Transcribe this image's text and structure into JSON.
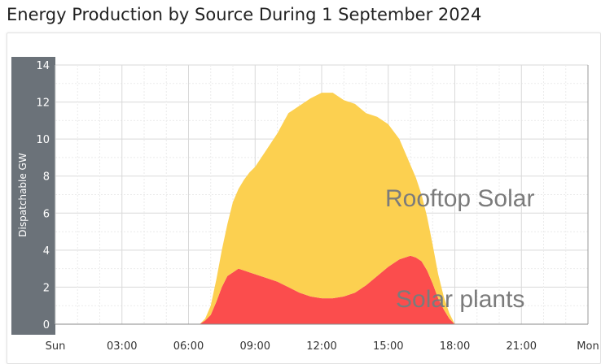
{
  "title": "Energy Production by Source During 1 September 2024",
  "chart_data": {
    "type": "area",
    "stacked": true,
    "ylabel": "Dispatchable GW",
    "ylim": [
      0,
      14
    ],
    "yticks": [
      0,
      2,
      4,
      6,
      8,
      10,
      12,
      14
    ],
    "xlim": [
      0,
      24
    ],
    "xticks": [
      {
        "x": 0,
        "label": "Sun"
      },
      {
        "x": 3,
        "label": "03:00"
      },
      {
        "x": 6,
        "label": "06:00"
      },
      {
        "x": 9,
        "label": "09:00"
      },
      {
        "x": 12,
        "label": "12:00"
      },
      {
        "x": 15,
        "label": "15:00"
      },
      {
        "x": 18,
        "label": "18:00"
      },
      {
        "x": 21,
        "label": "21:00"
      },
      {
        "x": 24,
        "label": "Mon"
      }
    ],
    "grid": true,
    "x_hours": [
      6.5,
      6.75,
      7.0,
      7.25,
      7.5,
      7.75,
      8.0,
      8.25,
      8.5,
      8.75,
      9.0,
      9.5,
      10.0,
      10.5,
      11.0,
      11.5,
      12.0,
      12.5,
      13.0,
      13.5,
      14.0,
      14.5,
      15.0,
      15.5,
      16.0,
      16.25,
      16.5,
      16.75,
      17.0,
      17.25,
      17.5,
      17.75,
      18.0
    ],
    "series": [
      {
        "name": "Solar plants",
        "color": "#fb4d4d",
        "values": [
          0.0,
          0.2,
          0.5,
          1.2,
          2.0,
          2.6,
          2.8,
          3.0,
          2.9,
          2.8,
          2.7,
          2.5,
          2.3,
          2.0,
          1.7,
          1.5,
          1.4,
          1.4,
          1.5,
          1.7,
          2.1,
          2.6,
          3.1,
          3.5,
          3.7,
          3.6,
          3.4,
          2.9,
          2.2,
          1.4,
          0.8,
          0.3,
          0.0
        ]
      },
      {
        "name": "Rooftop Solar",
        "color": "#fcd050",
        "values": [
          0.0,
          0.1,
          0.5,
          1.2,
          2.0,
          2.8,
          3.8,
          4.3,
          4.9,
          5.4,
          5.8,
          6.9,
          8.0,
          9.4,
          10.1,
          10.7,
          11.1,
          11.1,
          10.6,
          10.2,
          9.3,
          8.6,
          7.7,
          6.5,
          4.9,
          4.3,
          3.6,
          2.9,
          2.1,
          1.3,
          0.7,
          0.3,
          0.0
        ]
      }
    ]
  }
}
